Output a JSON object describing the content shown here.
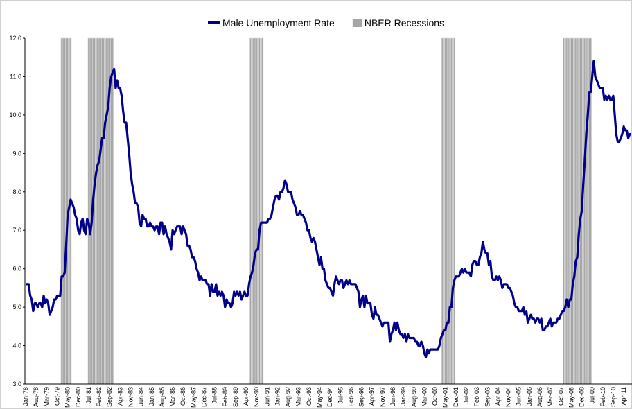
{
  "chart_data": {
    "type": "line",
    "ylim": [
      3,
      12
    ],
    "yticks": [
      {
        "value": 3,
        "label": "3.0"
      },
      {
        "value": 4,
        "label": "4.0"
      },
      {
        "value": 5,
        "label": "5.0"
      },
      {
        "value": 6,
        "label": "6.0"
      },
      {
        "value": 7,
        "label": "7.0"
      },
      {
        "value": 8,
        "label": "8.0"
      },
      {
        "value": 9,
        "label": "9.0"
      },
      {
        "value": 10,
        "label": "10.0"
      },
      {
        "value": 11,
        "label": "11.0"
      },
      {
        "value": 12,
        "label": "12.0"
      }
    ],
    "categories": [
      "Jan-78",
      null,
      null,
      null,
      null,
      null,
      null,
      "Aug-78",
      null,
      null,
      null,
      null,
      null,
      null,
      "Mar-79",
      null,
      null,
      null,
      null,
      null,
      null,
      "Oct-79",
      null,
      null,
      null,
      null,
      null,
      null,
      "May-80",
      null,
      null,
      null,
      null,
      null,
      null,
      "Dec-80",
      null,
      null,
      null,
      null,
      null,
      null,
      "Jul-81",
      null,
      null,
      null,
      null,
      null,
      null,
      "Feb-82",
      null,
      null,
      null,
      null,
      null,
      null,
      "Sep-82",
      null,
      null,
      null,
      null,
      null,
      null,
      "Apr-83",
      null,
      null,
      null,
      null,
      null,
      null,
      "Nov-83",
      null,
      null,
      null,
      null,
      null,
      null,
      "Jun-84",
      null,
      null,
      null,
      null,
      null,
      null,
      "Jan-85",
      null,
      null,
      null,
      null,
      null,
      null,
      "Aug-85",
      null,
      null,
      null,
      null,
      null,
      null,
      "Mar-86",
      null,
      null,
      null,
      null,
      null,
      null,
      "Oct-86",
      null,
      null,
      null,
      null,
      null,
      null,
      "May-87",
      null,
      null,
      null,
      null,
      null,
      null,
      "Dec-87",
      null,
      null,
      null,
      null,
      null,
      null,
      "Jul-88",
      null,
      null,
      null,
      null,
      null,
      null,
      "Feb-89",
      null,
      null,
      null,
      null,
      null,
      null,
      "Sep-89",
      null,
      null,
      null,
      null,
      null,
      null,
      "Apr-90",
      null,
      null,
      null,
      null,
      null,
      null,
      "Nov-90",
      null,
      null,
      null,
      null,
      null,
      null,
      "Jun-91",
      null,
      null,
      null,
      null,
      null,
      null,
      "Jan-92",
      null,
      null,
      null,
      null,
      null,
      null,
      "Aug-92",
      null,
      null,
      null,
      null,
      null,
      null,
      "Mar-93",
      null,
      null,
      null,
      null,
      null,
      null,
      "Oct-93",
      null,
      null,
      null,
      null,
      null,
      null,
      "May-94",
      null,
      null,
      null,
      null,
      null,
      null,
      "Dec-94",
      null,
      null,
      null,
      null,
      null,
      null,
      "Jul-95",
      null,
      null,
      null,
      null,
      null,
      null,
      "Feb-96",
      null,
      null,
      null,
      null,
      null,
      null,
      "Sep-96",
      null,
      null,
      null,
      null,
      null,
      null,
      "Apr-97",
      null,
      null,
      null,
      null,
      null,
      null,
      "Nov-97",
      null,
      null,
      null,
      null,
      null,
      null,
      "Jun-98",
      null,
      null,
      null,
      null,
      null,
      null,
      "Jan-99",
      null,
      null,
      null,
      null,
      null,
      null,
      "Aug-99",
      null,
      null,
      null,
      null,
      null,
      null,
      "Mar-00",
      null,
      null,
      null,
      null,
      null,
      null,
      "Oct-00",
      null,
      null,
      null,
      null,
      null,
      null,
      "May-01",
      null,
      null,
      null,
      null,
      null,
      null,
      "Dec-01",
      null,
      null,
      null,
      null,
      null,
      null,
      "Jul-02",
      null,
      null,
      null,
      null,
      null,
      null,
      "Feb-03",
      null,
      null,
      null,
      null,
      null,
      null,
      "Sep-03",
      null,
      null,
      null,
      null,
      null,
      null,
      "Apr-04",
      null,
      null,
      null,
      null,
      null,
      null,
      "Nov-04",
      null,
      null,
      null,
      null,
      null,
      null,
      "Jun-05",
      null,
      null,
      null,
      null,
      null,
      null,
      "Jan-06",
      null,
      null,
      null,
      null,
      null,
      null,
      "Aug-06",
      null,
      null,
      null,
      null,
      null,
      null,
      "Mar-07",
      null,
      null,
      null,
      null,
      null,
      null,
      "Oct-07",
      null,
      null,
      null,
      null,
      null,
      null,
      "May-08",
      null,
      null,
      null,
      null,
      null,
      null,
      "Dec-08",
      null,
      null,
      null,
      null,
      null,
      null,
      "Jul-09",
      null,
      null,
      null,
      null,
      null,
      null,
      "Feb-10",
      null,
      null,
      null,
      null,
      null,
      null,
      "Sep-10",
      null,
      null,
      null,
      null,
      null,
      null,
      "Apr-11",
      null,
      null,
      null,
      null,
      null
    ],
    "series": [
      {
        "name": "Male Unemployment Rate",
        "type": "line",
        "color": "#00008b",
        "values": [
          5.6,
          5.6,
          5.6,
          5.3,
          5.2,
          4.9,
          5.1,
          5.1,
          5.0,
          5.1,
          5.1,
          5.0,
          5.3,
          5.1,
          5.2,
          5.1,
          4.8,
          4.9,
          5.0,
          5.2,
          5.2,
          5.3,
          5.3,
          5.3,
          5.8,
          5.8,
          5.9,
          6.6,
          7.4,
          7.6,
          7.8,
          7.7,
          7.6,
          7.4,
          7.3,
          7.0,
          6.9,
          7.2,
          7.3,
          7.0,
          6.9,
          7.3,
          7.2,
          6.9,
          7.2,
          7.8,
          8.2,
          8.5,
          8.7,
          8.8,
          9.1,
          9.4,
          9.4,
          9.8,
          10.0,
          10.2,
          10.7,
          11.0,
          11.1,
          11.2,
          10.7,
          10.9,
          10.7,
          10.7,
          10.5,
          10.1,
          9.8,
          9.8,
          9.4,
          9.0,
          8.5,
          8.2,
          8.0,
          7.7,
          7.7,
          7.6,
          7.2,
          7.1,
          7.4,
          7.3,
          7.3,
          7.1,
          7.1,
          7.2,
          7.1,
          7.1,
          7.0,
          7.1,
          7.1,
          6.9,
          7.2,
          7.2,
          6.9,
          7.1,
          6.9,
          6.8,
          6.7,
          6.5,
          7.0,
          6.9,
          7.0,
          7.1,
          7.1,
          7.1,
          6.9,
          7.1,
          7.0,
          6.9,
          6.6,
          6.6,
          6.5,
          6.3,
          6.3,
          6.2,
          6.0,
          5.9,
          5.7,
          5.8,
          5.7,
          5.7,
          5.7,
          5.6,
          5.6,
          5.3,
          5.6,
          5.4,
          5.4,
          5.6,
          5.3,
          5.4,
          5.3,
          5.4,
          5.3,
          5.0,
          5.2,
          5.1,
          5.1,
          5.0,
          5.1,
          5.4,
          5.3,
          5.4,
          5.3,
          5.4,
          5.2,
          5.3,
          5.4,
          5.3,
          5.3,
          5.6,
          5.8,
          5.9,
          6.1,
          6.4,
          6.5,
          6.5,
          7.0,
          7.2,
          7.2,
          7.2,
          7.2,
          7.2,
          7.3,
          7.3,
          7.4,
          7.6,
          7.8,
          7.9,
          7.9,
          7.8,
          8.0,
          8.0,
          8.1,
          8.3,
          8.2,
          8.0,
          8.0,
          8.0,
          7.8,
          7.7,
          7.6,
          7.4,
          7.4,
          7.5,
          7.4,
          7.4,
          7.3,
          7.2,
          7.0,
          7.0,
          6.8,
          6.7,
          6.8,
          6.7,
          6.5,
          6.3,
          6.1,
          6.3,
          6.0,
          6.0,
          5.7,
          5.6,
          5.5,
          5.5,
          5.4,
          5.3,
          5.6,
          5.8,
          5.7,
          5.6,
          5.7,
          5.7,
          5.5,
          5.6,
          5.7,
          5.6,
          5.7,
          5.6,
          5.6,
          5.6,
          5.6,
          5.5,
          5.4,
          5.0,
          5.2,
          5.3,
          5.0,
          5.3,
          5.1,
          5.1,
          5.1,
          4.8,
          4.7,
          5.0,
          4.8,
          4.8,
          4.7,
          4.6,
          4.5,
          4.6,
          4.6,
          4.6,
          4.6,
          4.1,
          4.3,
          4.4,
          4.6,
          4.4,
          4.6,
          4.4,
          4.3,
          4.3,
          4.2,
          4.3,
          4.1,
          4.3,
          4.2,
          4.2,
          4.2,
          4.2,
          4.1,
          4.1,
          4.0,
          4.0,
          4.1,
          4.0,
          3.8,
          3.7,
          3.9,
          3.8,
          3.9,
          3.9,
          3.9,
          3.9,
          3.9,
          3.9,
          4.0,
          4.2,
          4.3,
          4.4,
          4.4,
          4.6,
          4.6,
          5.0,
          5.0,
          5.5,
          5.7,
          5.8,
          5.8,
          5.8,
          5.9,
          6.0,
          5.9,
          6.0,
          5.9,
          5.9,
          5.9,
          5.8,
          6.1,
          6.2,
          6.2,
          6.1,
          6.1,
          6.3,
          6.4,
          6.7,
          6.5,
          6.4,
          6.4,
          6.1,
          6.2,
          5.8,
          5.7,
          5.7,
          5.8,
          5.7,
          5.8,
          5.7,
          5.5,
          5.6,
          5.6,
          5.6,
          5.5,
          5.5,
          5.4,
          5.3,
          5.1,
          5.0,
          5.0,
          4.9,
          4.9,
          4.9,
          5.0,
          4.8,
          4.9,
          4.6,
          4.7,
          4.8,
          4.7,
          4.7,
          4.6,
          4.7,
          4.7,
          4.6,
          4.7,
          4.4,
          4.4,
          4.5,
          4.5,
          4.6,
          4.7,
          4.5,
          4.6,
          4.6,
          4.6,
          4.7,
          4.7,
          4.8,
          4.9,
          4.9,
          5.0,
          5.2,
          5.0,
          5.2,
          5.2,
          5.6,
          5.8,
          6.2,
          6.3,
          6.9,
          7.3,
          7.5,
          8.2,
          8.8,
          9.5,
          10.0,
          10.6,
          10.6,
          11.0,
          11.4,
          11.0,
          10.9,
          10.8,
          10.7,
          10.7,
          10.7,
          10.4,
          10.5,
          10.4,
          10.5,
          10.4,
          10.4,
          10.5,
          10.0,
          9.5,
          9.3,
          9.3,
          9.4,
          9.5,
          9.7,
          9.6,
          9.6,
          9.4,
          9.5,
          9.5
        ]
      },
      {
        "name": "NBER Recessions",
        "type": "bar",
        "color": "#a6a6a6",
        "values": [
          null,
          null,
          null,
          null,
          null,
          null,
          null,
          null,
          null,
          null,
          null,
          null,
          null,
          null,
          null,
          null,
          null,
          null,
          null,
          null,
          null,
          null,
          null,
          null,
          12,
          12,
          12,
          12,
          12,
          12,
          12,
          null,
          null,
          null,
          null,
          null,
          null,
          null,
          null,
          null,
          null,
          null,
          12,
          12,
          12,
          12,
          12,
          12,
          12,
          12,
          12,
          12,
          12,
          12,
          12,
          12,
          12,
          12,
          12,
          null,
          null,
          null,
          null,
          null,
          null,
          null,
          null,
          null,
          null,
          null,
          null,
          null,
          null,
          null,
          null,
          null,
          null,
          null,
          null,
          null,
          null,
          null,
          null,
          null,
          null,
          null,
          null,
          null,
          null,
          null,
          null,
          null,
          null,
          null,
          null,
          null,
          null,
          null,
          null,
          null,
          null,
          null,
          null,
          null,
          null,
          null,
          null,
          null,
          null,
          null,
          null,
          null,
          null,
          null,
          null,
          null,
          null,
          null,
          null,
          null,
          null,
          null,
          null,
          null,
          null,
          null,
          null,
          null,
          null,
          null,
          null,
          null,
          null,
          null,
          null,
          null,
          null,
          null,
          null,
          null,
          null,
          null,
          null,
          null,
          null,
          null,
          null,
          null,
          null,
          null,
          12,
          12,
          12,
          12,
          12,
          12,
          12,
          12,
          12,
          null,
          null,
          null,
          null,
          null,
          null,
          null,
          null,
          null,
          null,
          null,
          null,
          null,
          null,
          null,
          null,
          null,
          null,
          null,
          null,
          null,
          null,
          null,
          null,
          null,
          null,
          null,
          null,
          null,
          null,
          null,
          null,
          null,
          null,
          null,
          null,
          null,
          null,
          null,
          null,
          null,
          null,
          null,
          null,
          null,
          null,
          null,
          null,
          null,
          null,
          null,
          null,
          null,
          null,
          null,
          null,
          null,
          null,
          null,
          null,
          null,
          null,
          null,
          null,
          null,
          null,
          null,
          null,
          null,
          null,
          null,
          null,
          null,
          null,
          null,
          null,
          null,
          null,
          null,
          null,
          null,
          null,
          null,
          null,
          null,
          null,
          null,
          null,
          null,
          null,
          null,
          null,
          null,
          null,
          null,
          null,
          null,
          null,
          null,
          null,
          null,
          null,
          null,
          null,
          null,
          null,
          null,
          null,
          null,
          null,
          null,
          null,
          null,
          null,
          null,
          null,
          null,
          null,
          null,
          12,
          12,
          12,
          12,
          12,
          12,
          12,
          12,
          12,
          null,
          null,
          null,
          null,
          null,
          null,
          null,
          null,
          null,
          null,
          null,
          null,
          null,
          null,
          null,
          null,
          null,
          null,
          null,
          null,
          null,
          null,
          null,
          null,
          null,
          null,
          null,
          null,
          null,
          null,
          null,
          null,
          null,
          null,
          null,
          null,
          null,
          null,
          null,
          null,
          null,
          null,
          null,
          null,
          null,
          null,
          null,
          null,
          null,
          null,
          null,
          null,
          null,
          null,
          null,
          null,
          null,
          null,
          null,
          null,
          null,
          null,
          null,
          null,
          null,
          null,
          null,
          null,
          null,
          null,
          null,
          null,
          12,
          12,
          12,
          12,
          12,
          12,
          12,
          12,
          12,
          12,
          12,
          12,
          12,
          12,
          12,
          12,
          12,
          12,
          12,
          null,
          null,
          null,
          null,
          null,
          null,
          null,
          null,
          null,
          null,
          null,
          null,
          null,
          null,
          null,
          null,
          null,
          null,
          null,
          null,
          null,
          null,
          null,
          null,
          null,
          null,
          null
        ]
      }
    ]
  }
}
